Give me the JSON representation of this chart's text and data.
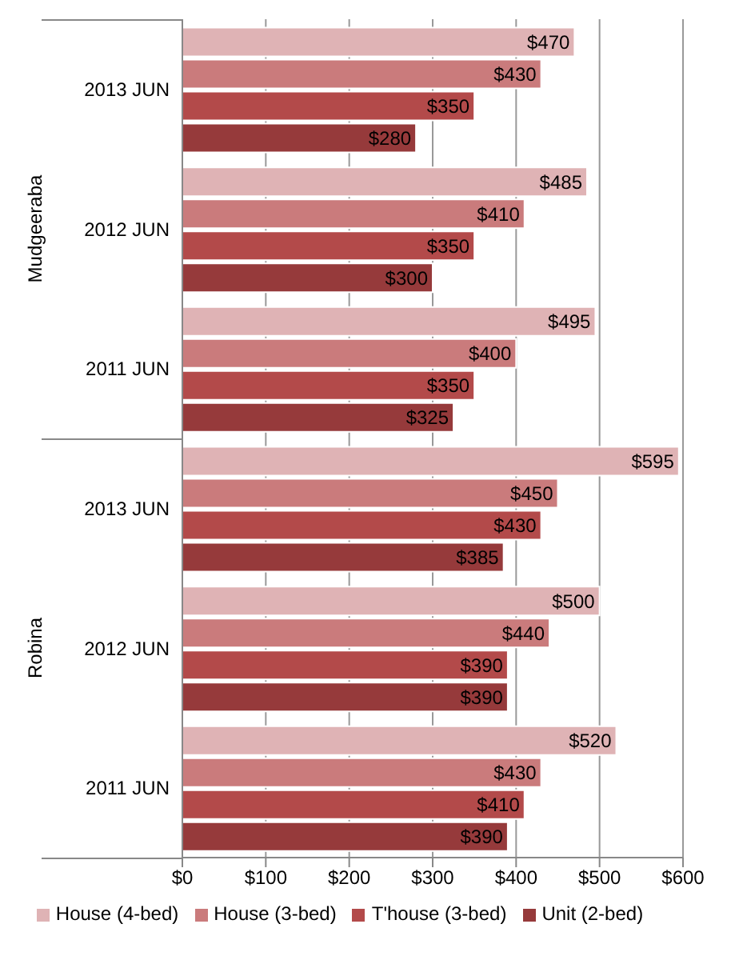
{
  "chart_data": {
    "type": "bar",
    "orientation": "horizontal",
    "categories": [
      "2013 JUN",
      "2012 JUN",
      "2011 JUN",
      "2013 JUN",
      "2012 JUN",
      "2011 JUN"
    ],
    "annotations": [
      "Mudgeeraba",
      "Robina"
    ],
    "series": [
      {
        "name": "House (4-bed)",
        "color": "#dfb3b5",
        "values": [
          470,
          485,
          495,
          595,
          500,
          520
        ],
        "value_labels": [
          "$470",
          "$485",
          "$495",
          "$595",
          "$500",
          "$520"
        ]
      },
      {
        "name": "House (3-bed)",
        "color": "#ca7b7c",
        "values": [
          430,
          410,
          400,
          450,
          440,
          430
        ],
        "value_labels": [
          "$430",
          "$410",
          "$400",
          "$450",
          "$440",
          "$430"
        ]
      },
      {
        "name": "T'house (3-bed)",
        "color": "#b34a4a",
        "values": [
          350,
          350,
          350,
          430,
          390,
          410
        ],
        "value_labels": [
          "$350",
          "$350",
          "$350",
          "$430",
          "$390",
          "$410"
        ]
      },
      {
        "name": "Unit (2-bed)",
        "color": "#963a3b",
        "values": [
          280,
          300,
          325,
          385,
          390,
          390
        ],
        "value_labels": [
          "$280",
          "$300",
          "$325",
          "$385",
          "$390",
          "$390"
        ]
      }
    ],
    "xlim": [
      0,
      600
    ],
    "xticks": [
      {
        "value": 0,
        "label": "$0"
      },
      {
        "value": 100,
        "label": "$100"
      },
      {
        "value": 200,
        "label": "$200"
      },
      {
        "value": 300,
        "label": "$300"
      },
      {
        "value": 400,
        "label": "$400"
      },
      {
        "value": 500,
        "label": "$500"
      },
      {
        "value": 600,
        "label": "$600"
      }
    ],
    "grid": "x",
    "legend": "bottom"
  }
}
